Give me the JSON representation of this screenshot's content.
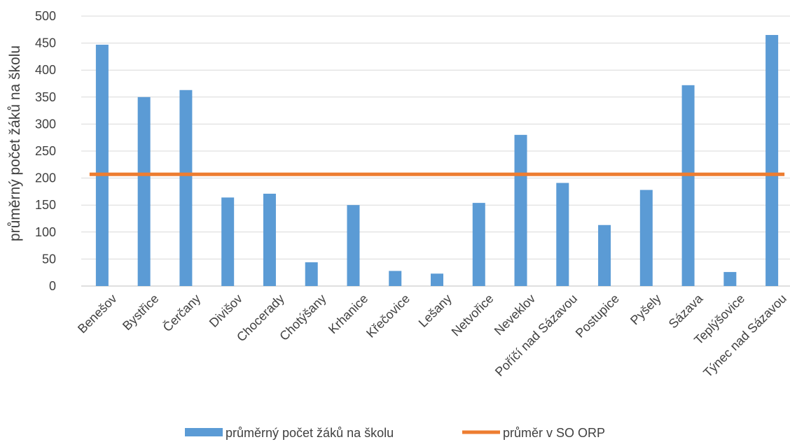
{
  "chart_data": {
    "type": "bar",
    "categories": [
      "Benešov",
      "Bystřice",
      "Čerčany",
      "Divišov",
      "Chocerady",
      "Chotýšany",
      "Krhanice",
      "Křečovice",
      "Lešany",
      "Netvořice",
      "Neveklov",
      "Poříčí nad Sázavou",
      "Postupice",
      "Pyšely",
      "Sázava",
      "Teplýšovice",
      "Týnec nad Sázavou"
    ],
    "series": [
      {
        "name": "průměrný počet žáků na školu",
        "type": "bar",
        "color": "#5B9BD5",
        "values": [
          447,
          350,
          363,
          164,
          171,
          44,
          150,
          28,
          23,
          154,
          280,
          191,
          113,
          178,
          372,
          26,
          465
        ]
      },
      {
        "name": "průměr v SO ORP",
        "type": "line",
        "color": "#ED7D31",
        "values": [
          207,
          207,
          207,
          207,
          207,
          207,
          207,
          207,
          207,
          207,
          207,
          207,
          207,
          207,
          207,
          207,
          207
        ]
      }
    ],
    "ylabel": "průměrný počet žáků na školu",
    "xlabel": "",
    "ylim": [
      0,
      500
    ],
    "yticks": [
      0,
      50,
      100,
      150,
      200,
      250,
      300,
      350,
      400,
      450,
      500
    ],
    "grid": true,
    "legend_position": "bottom"
  },
  "colors": {
    "gridline": "#D9D9D9",
    "axis": "#BFBFBF",
    "text": "#404040"
  }
}
